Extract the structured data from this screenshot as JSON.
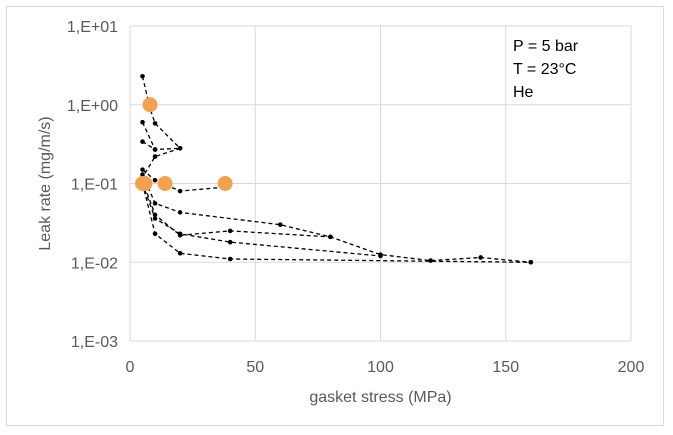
{
  "chart_data": {
    "type": "scatter",
    "title": "",
    "xlabel": "gasket stress (MPa)",
    "ylabel": "Leak rate (mg/m/s)",
    "xlim": [
      0,
      200
    ],
    "ylim": [
      0.001,
      10
    ],
    "yscale": "log",
    "x_ticks": [
      "0",
      "50",
      "100",
      "150",
      "200"
    ],
    "y_ticks": [
      "1,E-03",
      "1,E-02",
      "1,E-01",
      "1,E+00",
      "1,E+01"
    ],
    "grid": true,
    "legend": "none",
    "annotations": [
      "P = 5 bar",
      "T = 23°C",
      "He"
    ],
    "series": [
      {
        "style": "dashed-line-small-markers",
        "color": "#000000",
        "points": [
          [
            5,
            2.3
          ],
          [
            8,
            0.9
          ],
          [
            10,
            0.58
          ],
          [
            20,
            0.28
          ],
          [
            10,
            0.22
          ],
          [
            5,
            0.12
          ]
        ]
      },
      {
        "style": "dashed-line-small-markers",
        "color": "#000000",
        "points": [
          [
            5,
            0.6
          ],
          [
            10,
            0.27
          ],
          [
            20,
            0.28
          ]
        ]
      },
      {
        "style": "dashed-line-small-markers",
        "color": "#000000",
        "points": [
          [
            5,
            0.34
          ],
          [
            10,
            0.27
          ]
        ]
      },
      {
        "style": "dashed-line-small-markers",
        "color": "#000000",
        "points": [
          [
            5,
            0.15
          ],
          [
            10,
            0.11
          ],
          [
            20,
            0.08
          ],
          [
            38,
            0.09
          ]
        ]
      },
      {
        "style": "dashed-line-small-markers",
        "color": "#000000",
        "points": [
          [
            5,
            0.13
          ],
          [
            10,
            0.056
          ],
          [
            20,
            0.043
          ],
          [
            60,
            0.03
          ],
          [
            80,
            0.021
          ],
          [
            100,
            0.0125
          ],
          [
            120,
            0.0105
          ],
          [
            140,
            0.0115
          ],
          [
            160,
            0.01
          ]
        ]
      },
      {
        "style": "dashed-line-small-markers",
        "color": "#000000",
        "points": [
          [
            5,
            0.11
          ],
          [
            10,
            0.04
          ],
          [
            20,
            0.022
          ],
          [
            40,
            0.025
          ],
          [
            80,
            0.021
          ]
        ]
      },
      {
        "style": "dashed-line-small-markers",
        "color": "#000000",
        "points": [
          [
            5,
            0.1
          ],
          [
            10,
            0.036
          ],
          [
            20,
            0.023
          ],
          [
            40,
            0.018
          ],
          [
            100,
            0.012
          ]
        ]
      },
      {
        "style": "dashed-line-small-markers",
        "color": "#000000",
        "points": [
          [
            5,
            0.1
          ],
          [
            10,
            0.023
          ],
          [
            20,
            0.013
          ],
          [
            40,
            0.011
          ],
          [
            160,
            0.01
          ]
        ]
      },
      {
        "style": "large-markers",
        "color": "#f4a14d",
        "points": [
          [
            5,
            0.1
          ],
          [
            6,
            0.1
          ],
          [
            8,
            1.0
          ],
          [
            14,
            0.1
          ],
          [
            38,
            0.1
          ]
        ]
      }
    ]
  }
}
